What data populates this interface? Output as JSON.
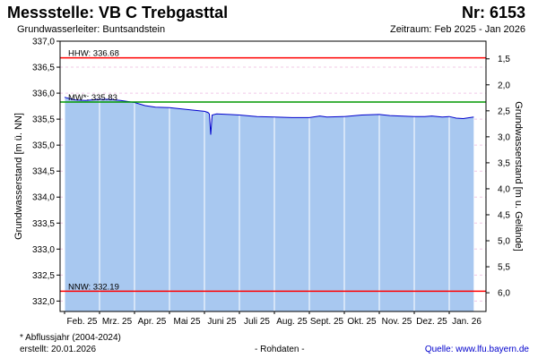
{
  "header": {
    "title": "Messstelle: VB C Trebgasttal",
    "number": "Nr: 6153",
    "aquifer": "Grundwasserleiter: Buntsandstein",
    "period": "Zeitraum: Feb 2025 - Jan 2026"
  },
  "footer": {
    "footnote": "* Abflussjahr (2004-2024)",
    "created": "erstellt:  20.01.2026",
    "rawdata": "- Rohdaten -",
    "source_label": "Quelle: ",
    "source_link": "www.lfu.bayern.de"
  },
  "colors": {
    "fill": "#a8c8f0",
    "line": "#0000cc",
    "hhw": "#ff0000",
    "mw": "#009900",
    "nnw": "#ff0000",
    "vgrid": "#ffffff",
    "hgrid": "#f0c8e6"
  },
  "chart_data": {
    "type": "area",
    "ylabel_left": "Grundwasserstand [m ü. NN]",
    "ylabel_right": "Grundwasserstand [m u. Gelände]",
    "ylim": [
      331.8,
      337.0
    ],
    "left_ticks": [
      "332,0",
      "332,5",
      "333,0",
      "333,5",
      "334,0",
      "334,5",
      "335,0",
      "335,5",
      "336,0",
      "336,5",
      "337,0"
    ],
    "left_tick_values": [
      332.0,
      332.5,
      333.0,
      333.5,
      334.0,
      334.5,
      335.0,
      335.5,
      336.0,
      336.5,
      337.0
    ],
    "right_ticks": [
      "1,5",
      "2,0",
      "2,5",
      "3,0",
      "3,5",
      "4,0",
      "4,5",
      "5,0",
      "5,5",
      "6,0"
    ],
    "right_tick_values": [
      1.5,
      2.0,
      2.5,
      3.0,
      3.5,
      4.0,
      4.5,
      5.0,
      5.5,
      6.0
    ],
    "ground_level": 338.16,
    "x_labels": [
      "Feb. 25",
      "Mrz. 25",
      "Apr. 25",
      "Mai 25",
      "Juni 25",
      "Juli 25",
      "Aug. 25",
      "Sept. 25",
      "Okt. 25",
      "Nov. 25",
      "Dez. 25",
      "Jan. 26"
    ],
    "x_months": [
      0,
      1,
      2,
      3,
      4,
      5,
      6,
      7,
      8,
      9,
      10,
      11
    ],
    "x_range_months": [
      0,
      12
    ],
    "reference_lines": [
      {
        "key": "hhw",
        "label": "HHW: 336.68",
        "value": 336.68
      },
      {
        "key": "mw",
        "label": "MW*: 335.83",
        "value": 335.83
      },
      {
        "key": "nnw",
        "label": "NNW: 332.19",
        "value": 332.19
      }
    ],
    "series": [
      {
        "x": [
          0.0,
          0.3,
          0.6,
          1.0,
          1.3,
          1.6,
          2.0,
          2.3,
          2.6,
          3.0,
          3.3,
          3.6,
          4.0,
          4.1,
          4.14,
          4.18,
          4.22,
          4.35,
          4.7,
          5.0,
          5.5,
          6.0,
          6.5,
          7.0,
          7.3,
          7.5,
          8.0,
          8.5,
          9.0,
          9.3,
          9.6,
          10.0,
          10.3,
          10.5,
          10.8,
          11.0,
          11.2,
          11.4,
          11.7
        ],
        "y": [
          335.92,
          335.87,
          335.86,
          335.88,
          335.88,
          335.86,
          335.82,
          335.76,
          335.73,
          335.72,
          335.7,
          335.68,
          335.65,
          335.63,
          335.6,
          335.2,
          335.58,
          335.6,
          335.59,
          335.58,
          335.55,
          335.54,
          335.53,
          335.53,
          335.56,
          335.54,
          335.55,
          335.58,
          335.59,
          335.57,
          335.56,
          335.55,
          335.55,
          335.56,
          335.54,
          335.55,
          335.52,
          335.51,
          335.54
        ]
      }
    ]
  }
}
